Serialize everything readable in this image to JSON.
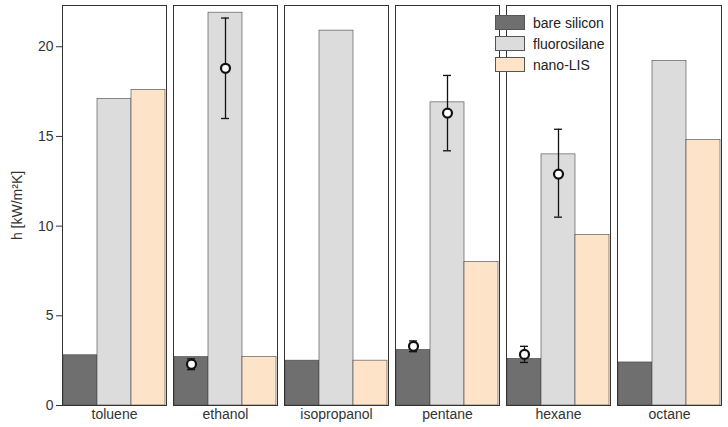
{
  "chart_data": {
    "type": "bar",
    "y_label": "h [kW/m²K]",
    "categories": [
      "toluene",
      "ethanol",
      "isopropanol",
      "pentane",
      "hexane",
      "octane"
    ],
    "series": [
      {
        "name": "bare silicon",
        "color": "#6f6f6f",
        "values": [
          2.8,
          2.7,
          2.5,
          3.1,
          2.6,
          2.4
        ],
        "measured": [
          null,
          2.3,
          null,
          3.3,
          2.85,
          null
        ],
        "measured_low": [
          null,
          2.0,
          null,
          3.0,
          2.4,
          null
        ],
        "measured_high": [
          null,
          2.6,
          null,
          3.6,
          3.3,
          null
        ]
      },
      {
        "name": "fluorosilane",
        "color": "#dcdcdc",
        "values": [
          17.1,
          21.9,
          20.9,
          16.9,
          14.0,
          19.2
        ],
        "measured": [
          null,
          18.8,
          null,
          16.3,
          12.9,
          null
        ],
        "measured_low": [
          null,
          16.0,
          null,
          14.2,
          10.5,
          null
        ],
        "measured_high": [
          null,
          21.6,
          null,
          18.4,
          15.4,
          null
        ]
      },
      {
        "name": "nano-LIS",
        "color": "#fde3c8",
        "values": [
          17.6,
          2.7,
          2.5,
          8.0,
          9.5,
          14.8
        ]
      }
    ],
    "ylim": [
      0,
      22.3
    ],
    "yticks": [
      0,
      5,
      10,
      15,
      20
    ],
    "grid": false,
    "legend": "top-right"
  }
}
